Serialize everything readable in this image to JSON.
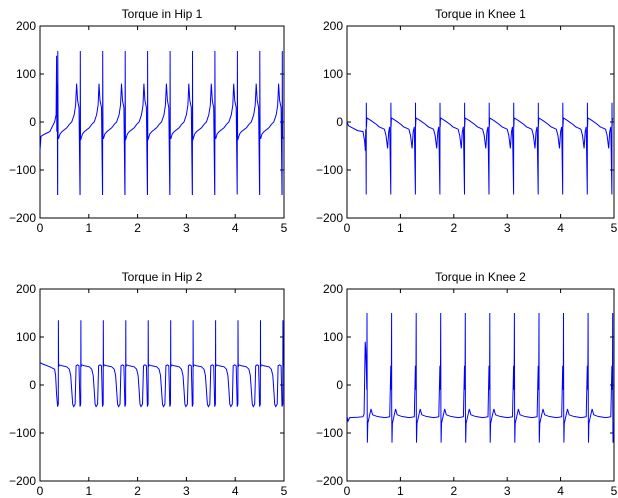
{
  "chart_data": [
    {
      "type": "line",
      "title": "Torque in Hip 1",
      "xlim": [
        0,
        5
      ],
      "ylim": [
        -200,
        200
      ],
      "xticks": [
        "0",
        "1",
        "2",
        "3",
        "4",
        "5"
      ],
      "yticks": [
        "200",
        "100",
        "0",
        "−100",
        "−200"
      ],
      "series": [
        {
          "color": "#0000ff",
          "period": 0.46,
          "phase": 0.36,
          "points": [
            [
              0.0,
              -60
            ],
            [
              0.02,
              -30
            ],
            [
              0.05,
              -28
            ],
            [
              0.1,
              -25
            ],
            [
              0.2,
              -20
            ],
            [
              0.3,
              0
            ],
            [
              0.33,
              15
            ],
            [
              0.34,
              138
            ],
            [
              0.345,
              -20
            ],
            [
              0.355,
              80
            ],
            [
              0.36,
              -151
            ],
            [
              0.362,
              -151
            ],
            [
              0.365,
              148
            ],
            [
              0.37,
              -30
            ],
            [
              0.38,
              -35
            ],
            [
              0.41,
              -25
            ],
            [
              0.45,
              -20
            ],
            [
              0.55,
              -12
            ],
            [
              0.6,
              -5
            ],
            [
              0.65,
              0
            ],
            [
              0.7,
              15
            ],
            [
              0.73,
              35
            ],
            [
              0.75,
              80
            ],
            [
              0.77,
              45
            ],
            [
              0.8,
              30
            ]
          ]
        }
      ]
    },
    {
      "type": "line",
      "title": "Torque in Knee 1",
      "xlim": [
        0,
        5
      ],
      "ylim": [
        -200,
        200
      ],
      "xticks": [
        "0",
        "1",
        "2",
        "3",
        "4",
        "5"
      ],
      "yticks": [
        "200",
        "100",
        "0",
        "−100",
        "−200"
      ],
      "series": [
        {
          "color": "#0000ff",
          "period": 0.46,
          "phase": 0.36,
          "points": [
            [
              0.0,
              0
            ],
            [
              0.03,
              -8
            ],
            [
              0.1,
              -12
            ],
            [
              0.2,
              -18
            ],
            [
              0.3,
              -20
            ],
            [
              0.33,
              -40
            ],
            [
              0.345,
              -60
            ],
            [
              0.35,
              -15
            ],
            [
              0.355,
              -62
            ],
            [
              0.36,
              -151
            ],
            [
              0.362,
              40
            ],
            [
              0.365,
              -10
            ],
            [
              0.37,
              5
            ],
            [
              0.38,
              8
            ],
            [
              0.45,
              3
            ],
            [
              0.55,
              -5
            ],
            [
              0.6,
              -10
            ],
            [
              0.7,
              -15
            ],
            [
              0.73,
              -28
            ],
            [
              0.76,
              -55
            ],
            [
              0.78,
              -20
            ],
            [
              0.8,
              -10
            ]
          ]
        }
      ]
    },
    {
      "type": "line",
      "title": "Torque in Hip 2",
      "xlim": [
        0,
        5
      ],
      "ylim": [
        -200,
        200
      ],
      "xticks": [
        "0",
        "1",
        "2",
        "3",
        "4",
        "5"
      ],
      "yticks": [
        "200",
        "100",
        "0",
        "−100",
        "−200"
      ],
      "series": [
        {
          "color": "#0000ff",
          "period": 0.46,
          "phase": 0.36,
          "points": [
            [
              0.0,
              47
            ],
            [
              0.05,
              44
            ],
            [
              0.2,
              38
            ],
            [
              0.3,
              33
            ],
            [
              0.32,
              20
            ],
            [
              0.34,
              -20
            ],
            [
              0.36,
              -45
            ],
            [
              0.375,
              -40
            ],
            [
              0.378,
              135
            ],
            [
              0.381,
              40
            ],
            [
              0.385,
              38
            ],
            [
              0.39,
              42
            ],
            [
              0.45,
              40
            ],
            [
              0.55,
              38
            ],
            [
              0.6,
              33
            ],
            [
              0.63,
              20
            ],
            [
              0.65,
              -10
            ],
            [
              0.67,
              -40
            ],
            [
              0.69,
              -45
            ],
            [
              0.72,
              -40
            ],
            [
              0.74,
              40
            ],
            [
              0.77,
              42
            ],
            [
              0.8,
              40
            ]
          ]
        }
      ]
    },
    {
      "type": "line",
      "title": "Torque in Knee 2",
      "xlim": [
        0,
        5
      ],
      "ylim": [
        -200,
        200
      ],
      "xticks": [
        "0",
        "1",
        "2",
        "3",
        "4",
        "5"
      ],
      "yticks": [
        "200",
        "100",
        "0",
        "−100",
        "−200"
      ],
      "series": [
        {
          "color": "#0000ff",
          "period": 0.46,
          "phase": 0.36,
          "points": [
            [
              0.0,
              -65
            ],
            [
              0.02,
              -75
            ],
            [
              0.05,
              -68
            ],
            [
              0.2,
              -67
            ],
            [
              0.3,
              -66
            ],
            [
              0.32,
              -60
            ],
            [
              0.34,
              90
            ],
            [
              0.35,
              75
            ],
            [
              0.36,
              40
            ],
            [
              0.365,
              20
            ],
            [
              0.37,
              -10
            ],
            [
              0.375,
              150
            ],
            [
              0.378,
              -50
            ],
            [
              0.382,
              -120
            ],
            [
              0.39,
              -80
            ],
            [
              0.42,
              -65
            ],
            [
              0.45,
              -50
            ],
            [
              0.48,
              -62
            ],
            [
              0.55,
              -65
            ],
            [
              0.6,
              -66
            ],
            [
              0.7,
              -68
            ],
            [
              0.75,
              -67
            ],
            [
              0.8,
              -66
            ]
          ]
        }
      ]
    }
  ]
}
